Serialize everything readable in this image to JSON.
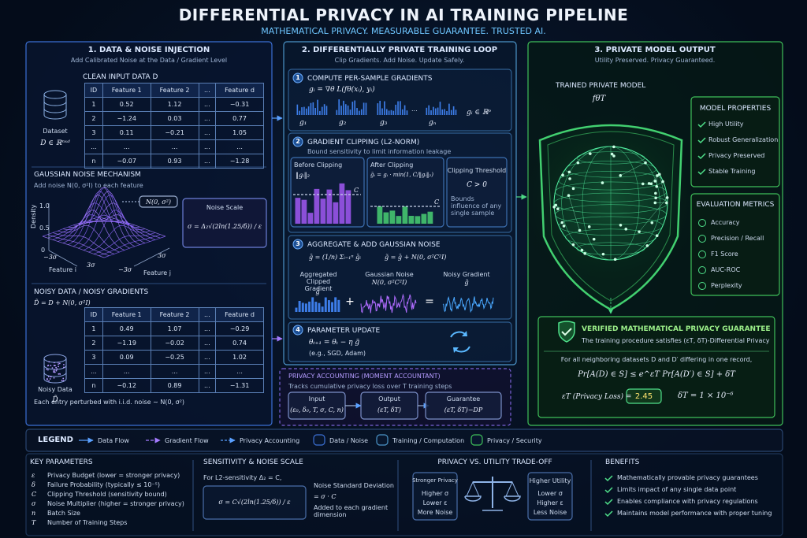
{
  "header": {
    "title": "DIFFERENTIAL PRIVACY IN AI TRAINING PIPELINE",
    "subtitle": "MATHEMATICAL PRIVACY. MEASURABLE GUARANTEE. TRUSTED AI."
  },
  "panel1": {
    "title": "1. DATA & NOISE INJECTION",
    "subtitle": "Add Calibrated Noise at the Data / Gradient Level",
    "clean_label": "CLEAN INPUT DATA  D",
    "dataset_label": "Dataset",
    "dataset_formula": "D ∈ ℝⁿˣᵈ",
    "clean_table": {
      "header": [
        "ID",
        "Feature 1",
        "Feature 2",
        "...",
        "Feature d"
      ],
      "rows": [
        [
          "1",
          "0.52",
          "1.12",
          "...",
          "−0.31"
        ],
        [
          "2",
          "−1.24",
          "0.03",
          "...",
          "0.77"
        ],
        [
          "3",
          "0.11",
          "−0.21",
          "...",
          "1.05"
        ],
        [
          "...",
          "...",
          "...",
          "...",
          "..."
        ],
        [
          "n",
          "−0.07",
          "0.93",
          "...",
          "−1.28"
        ]
      ]
    },
    "gaussian_title": "GAUSSIAN NOISE MECHANISM",
    "gaussian_desc": "Add noise N(0, σ²I) to each feature",
    "dist_label": "N(0, σ²)",
    "plot": {
      "density_label": "Density",
      "y_labels": [
        "1.0",
        "0.5",
        "0"
      ],
      "x_labels": [
        "−3σ",
        "3σ",
        "−3σ",
        "3σ"
      ],
      "feature_i": "Feature i",
      "feature_j": "Feature j"
    },
    "noise_scale_label": "Noise Scale",
    "noise_scale_formula": "σ = Δ₂√(2ln(1.25/δ)) / ε",
    "noisy_title": "NOISY DATA / NOISY GRADIENTS",
    "noisy_formula": "D̃ = D + N(0, σ²I)",
    "noisy_data_label": "Noisy Data",
    "noisy_data_symbol": "D̃",
    "noisy_table": {
      "header": [
        "ID",
        "Feature 1",
        "Feature 2",
        "...",
        "Feature d"
      ],
      "rows": [
        [
          "1",
          "0.49",
          "1.07",
          "...",
          "−0.29"
        ],
        [
          "2",
          "−1.19",
          "−0.02",
          "...",
          "0.74"
        ],
        [
          "3",
          "0.09",
          "−0.25",
          "...",
          "1.02"
        ],
        [
          "...",
          "...",
          "...",
          "...",
          "..."
        ],
        [
          "n",
          "−0.12",
          "0.89",
          "...",
          "−1.31"
        ]
      ]
    },
    "footnote": "Each entry perturbed with i.i.d. noise ∼ N(0, σ²)"
  },
  "panel2": {
    "title": "2. DIFFERENTIALLY PRIVATE TRAINING LOOP",
    "subtitle": "Clip Gradients. Add Noise. Update Safely.",
    "step1": {
      "num": "1",
      "title": "COMPUTE PER-SAMPLE GRADIENTS",
      "formula": "gᵢ = ∇θ L(fθ(xᵢ), yᵢ)",
      "grad_labels": [
        "g₁",
        "g₂",
        "g₃",
        "gₙ"
      ],
      "ellipsis": "...",
      "space": "gᵢ ∈ ℝᵖ"
    },
    "step2": {
      "num": "2",
      "title": "GRADIENT CLIPPING (L2-NORM)",
      "desc": "Bound sensitivity to limit information leakage",
      "before": "Before Clipping",
      "norm": "‖gᵢ‖₂",
      "c_label": "C",
      "after": "After Clipping",
      "formula": "ḡᵢ = gᵢ · min(1, C/‖gᵢ‖₂)",
      "threshold_title": "Clipping Threshold",
      "threshold": "C > 0",
      "threshold_desc": "Bounds influence of any single sample"
    },
    "step3": {
      "num": "3",
      "title": "AGGREGATE & ADD GAUSSIAN NOISE",
      "formula_mean": "ḡ = (1/n) Σᵢ₌₁ⁿ ḡᵢ",
      "formula_noise": "g̃ = ḡ + N(0, σ²C²I)",
      "agg_label": "Aggregated Clipped Gradient",
      "agg_symbol": "ḡ",
      "noise_label": "Gaussian Noise",
      "noise_symbol": "N(0, σ²C²I)",
      "noisy_label": "Noisy Gradient",
      "noisy_symbol": "g̃",
      "plus": "+",
      "equals": "="
    },
    "step4": {
      "num": "4",
      "title": "PARAMETER UPDATE",
      "formula": "θₜ₊₁ = θₜ − η g̃",
      "example": "(e.g., SGD, Adam)"
    },
    "accounting": {
      "title": "PRIVACY ACCOUNTING (MOMENT ACCOUNTANT)",
      "desc": "Tracks cumulative privacy loss over T training steps",
      "input": "Input",
      "input_val": "(ε₀, δ₀, T, σ, C, n)",
      "output": "Output",
      "output_val": "(εT, δT)",
      "guarantee": "Guarantee",
      "guarantee_val": "(εT, δT)−DP"
    }
  },
  "panel3": {
    "title": "3. PRIVATE MODEL OUTPUT",
    "subtitle": "Utility Preserved. Privacy Guaranteed.",
    "model_label": "TRAINED PRIVATE MODEL",
    "model_symbol": "fθT",
    "properties_title": "MODEL PROPERTIES",
    "properties": [
      "High Utility",
      "Robust Generalization",
      "Privacy Preserved",
      "Stable Training"
    ],
    "metrics_title": "EVALUATION METRICS",
    "metrics": [
      "Accuracy",
      "Precision / Recall",
      "F1 Score",
      "AUC-ROC",
      "Perplexity"
    ],
    "verified": {
      "title": "VERIFIED MATHEMATICAL PRIVACY GUARANTEE",
      "desc": "The training procedure satisfies (εT, δT)-Differential Privacy",
      "condition": "For all neighboring datasets D and D′ differing in one record,",
      "formula": "Pr[A(D) ∈ S] ≤ e^εT Pr[A(D′) ∈ S] + δT",
      "eps_label": "εT  (Privacy Loss)  =",
      "eps_value": "2.45",
      "delta": "δT  =  1 × 10⁻⁶"
    }
  },
  "legend": {
    "title": "LEGEND",
    "items": [
      "Data Flow",
      "Gradient Flow",
      "Privacy Accounting",
      "Data / Noise",
      "Training / Computation",
      "Privacy / Security"
    ]
  },
  "bottom": {
    "key_params": {
      "title": "KEY PARAMETERS",
      "items": [
        [
          "ε",
          "Privacy Budget (lower = stronger privacy)"
        ],
        [
          "δ",
          "Failure Probability (typically ≤ 10⁻⁵)"
        ],
        [
          "C",
          "Clipping Threshold (sensitivity bound)"
        ],
        [
          "σ",
          "Noise Multiplier (higher = stronger privacy)"
        ],
        [
          "n",
          "Batch Size"
        ],
        [
          "T",
          "Number of Training Steps"
        ]
      ]
    },
    "sensitivity": {
      "title": "SENSITIVITY & NOISE SCALE",
      "intro": "For L2-sensitivity Δ₂ = C,",
      "formula": "σ = C√(2ln(1.25/δ)) / ε",
      "std_label": "Noise Standard Deviation",
      "std_value": "= σ · C",
      "note": "Added to each gradient dimension"
    },
    "tradeoff": {
      "title": "PRIVACY VS. UTILITY TRADE-OFF",
      "left_title": "Stronger Privacy",
      "left": [
        "Higher σ",
        "Lower ε",
        "More Noise"
      ],
      "right_title": "Higher Utility",
      "right": [
        "Lower σ",
        "Higher ε",
        "Less Noise"
      ]
    },
    "benefits": {
      "title": "BENEFITS",
      "items": [
        "Mathematically provable privacy guarantees",
        "Limits impact of any single data point",
        "Enables compliance with privacy regulations",
        "Maintains model performance with proper tuning"
      ]
    }
  }
}
